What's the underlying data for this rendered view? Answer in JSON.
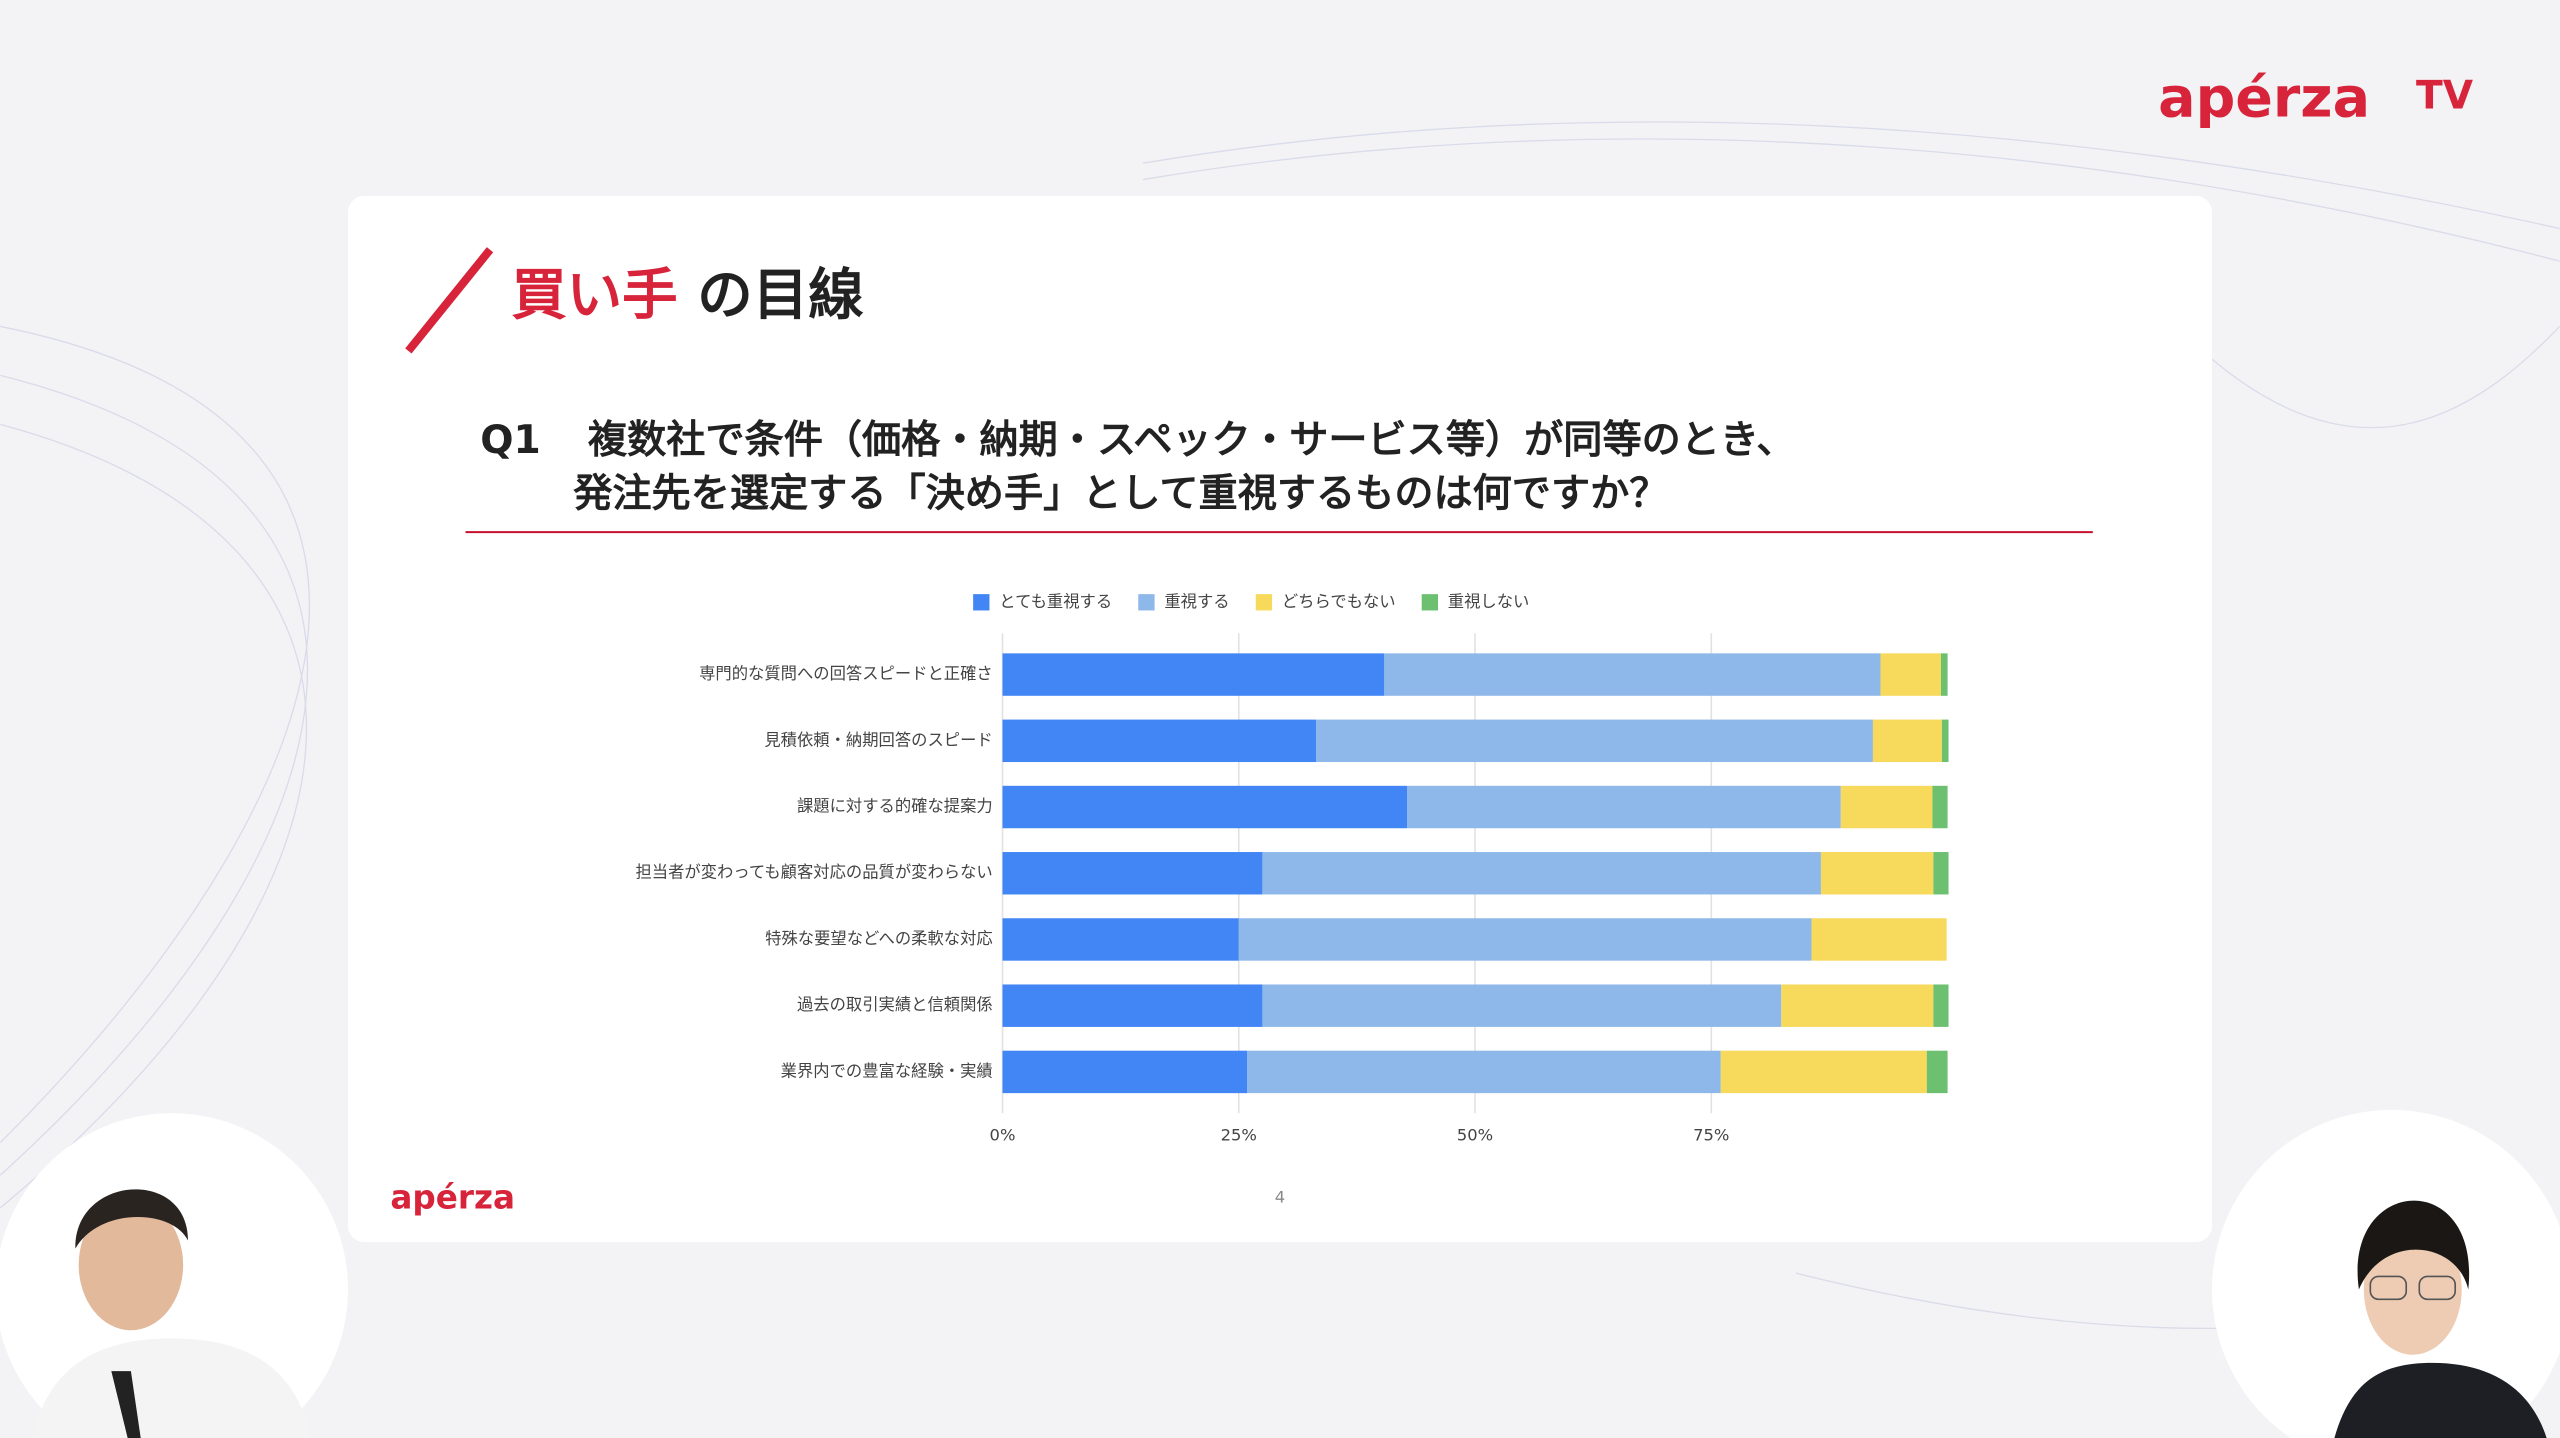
{
  "header": {
    "logo": "apérza",
    "logo_suffix": "TV"
  },
  "slide": {
    "title_accent": "買い手",
    "title_rest": "の目線",
    "question_number": "Q1",
    "question_lines": [
      "複数社で条件（価格・納期・スペック・サービス等）が同等のとき、",
      "発注先を選定する「決め手」として重視するものは何ですか？"
    ],
    "footer_logo": "apérza",
    "page_number": 4
  },
  "chart_data": {
    "type": "bar",
    "orientation": "horizontal",
    "stacked": true,
    "legend": "top",
    "grid": true,
    "categories": [
      "専門的な質問への回答スピードと正確さ",
      "見積依頼・納期回答のスピード",
      "課題に対する的確な提案力",
      "担当者が変わっても顧客対応の品質が変わらない",
      "特殊な要望などへの柔軟な対応",
      "過去の取引実績と信頼関係",
      "業界内での豊富な経験・実績"
    ],
    "series": [
      {
        "name": "とても重視する",
        "color": "#4285f4",
        "values": [
          40.4,
          33.2,
          42.8,
          27.5,
          25.0,
          27.5,
          25.9
        ]
      },
      {
        "name": "重視する",
        "color": "#8fb8ea",
        "values": [
          52.5,
          58.9,
          45.9,
          59.1,
          60.6,
          54.9,
          50.1
        ]
      },
      {
        "name": "どちらでもない",
        "color": "#f7d95b",
        "values": [
          6.4,
          7.3,
          9.7,
          11.9,
          14.3,
          16.1,
          21.8
        ]
      },
      {
        "name": "重視しない",
        "color": "#6cc070",
        "values": [
          0.7,
          0.7,
          1.6,
          1.6,
          0,
          1.6,
          2.2
        ]
      }
    ],
    "xlim": [
      0,
      100
    ],
    "xticks": [
      {
        "value": 0,
        "label": "0%"
      },
      {
        "value": 25,
        "label": "25%"
      },
      {
        "value": 50,
        "label": "50%"
      },
      {
        "value": 75,
        "label": "75%"
      }
    ]
  }
}
